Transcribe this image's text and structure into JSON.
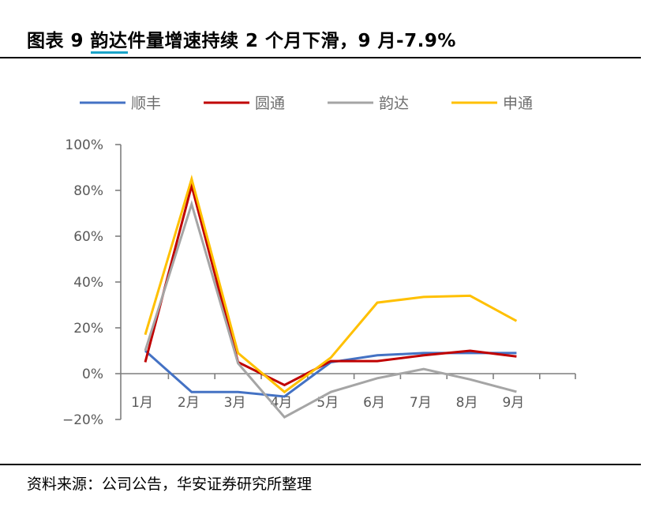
{
  "header": {
    "title_prefix": "图表 9 ",
    "title_highlight": "韵达",
    "title_suffix": "件量增速持续 2 个月下滑，9 月-7.9%"
  },
  "footer": {
    "source": "资料来源：公司公告，华安证券研究所整理"
  },
  "chart_data": {
    "type": "line",
    "title": "图表 9 韵达件量增速持续 2 个月下滑，9 月-7.9%",
    "xlabel": "",
    "ylabel": "",
    "categories": [
      "1月",
      "2月",
      "3月",
      "4月",
      "5月",
      "6月",
      "7月",
      "8月",
      "9月"
    ],
    "yticks": [
      "100%",
      "80%",
      "60%",
      "40%",
      "20%",
      "0%",
      "−20%"
    ],
    "ylim": [
      -20,
      100
    ],
    "grid": false,
    "legend_position": "top",
    "unit": "%",
    "series": [
      {
        "name": "顺丰",
        "color": "#4472c4",
        "values": [
          10,
          -8,
          -8,
          -10,
          5,
          8,
          9,
          9,
          9
        ]
      },
      {
        "name": "圆通",
        "color": "#c00000",
        "values": [
          5,
          82,
          5,
          -5,
          5.5,
          5.5,
          8,
          10,
          7.5
        ]
      },
      {
        "name": "韵达",
        "color": "#a5a5a5",
        "values": [
          10,
          74,
          4.5,
          -19,
          -8,
          -2,
          2,
          -2.5,
          -7.9
        ]
      },
      {
        "name": "申通",
        "color": "#ffc000",
        "values": [
          17,
          85,
          9,
          -8,
          7,
          31,
          33.5,
          34,
          23
        ]
      }
    ]
  }
}
